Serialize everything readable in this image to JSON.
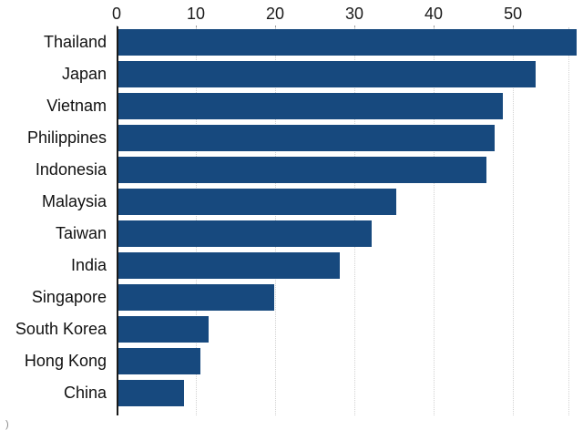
{
  "chart_data": {
    "type": "bar",
    "orientation": "horizontal",
    "title": "",
    "xlabel": "",
    "ylabel": "",
    "categories": [
      "Thailand",
      "Japan",
      "Vietnam",
      "Philippines",
      "Indonesia",
      "Malaysia",
      "Taiwan",
      "India",
      "Singapore",
      "South Korea",
      "Hong Kong",
      "China"
    ],
    "values": [
      56,
      51,
      47,
      46,
      45,
      34,
      31,
      27,
      19,
      11,
      10,
      8
    ],
    "xlim": [
      0,
      57
    ],
    "xticks": [
      0,
      10,
      20,
      30,
      40,
      50
    ],
    "legend": "none",
    "grid": "faint dotted vertical gridlines",
    "axis_position": "x-axis on top, y-axis line on left",
    "bar_color": "#17497E"
  },
  "colors": {
    "bar": "#17497E",
    "axis_line": "#1a1a1a",
    "grid": "#d2d2d2",
    "label": "#111111",
    "background": "#ffffff"
  },
  "footnote": ")"
}
